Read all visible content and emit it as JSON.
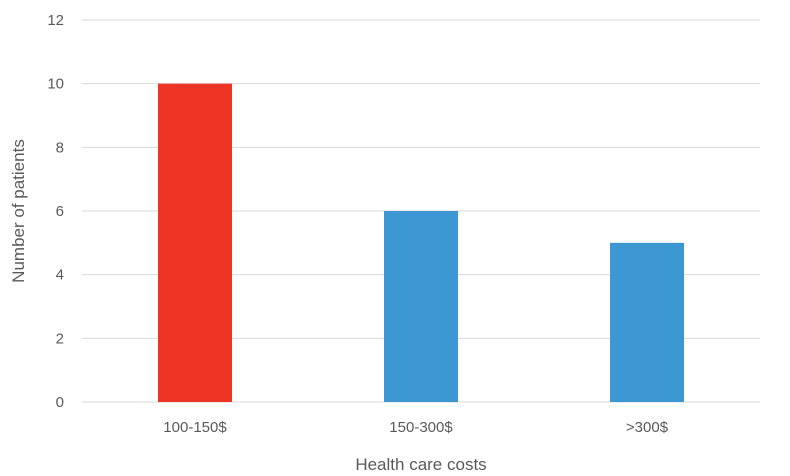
{
  "chart_data": {
    "type": "bar",
    "title": "",
    "xlabel": "Health care costs",
    "ylabel": "Number of patients",
    "categories": [
      "100-150$",
      "150-300$",
      ">300$"
    ],
    "values": [
      10,
      6,
      5
    ],
    "bar_colors": [
      "#ee3424",
      "#3d97d3",
      "#3d97d3"
    ],
    "ylim": [
      0,
      12
    ],
    "yticks": [
      0,
      2,
      4,
      6,
      8,
      10,
      12
    ],
    "grid": true,
    "legend": "none"
  }
}
